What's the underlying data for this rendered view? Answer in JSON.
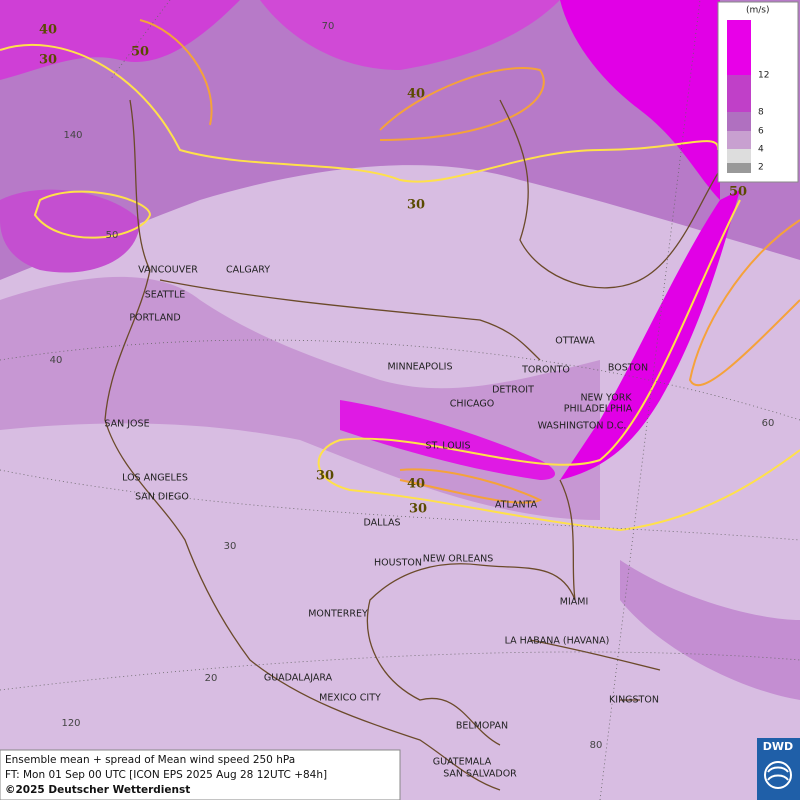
{
  "legend": {
    "unit": "(m/s)",
    "labels": [
      "12",
      "8",
      "6",
      "4",
      "2"
    ]
  },
  "cities": [
    "VANCOUVER",
    "CALGARY",
    "SEATTLE",
    "PORTLAND",
    "MINNEAPOLIS",
    "OTTAWA",
    "TORONTO",
    "DETROIT",
    "BOSTON",
    "NEW YORK",
    "PHILADELPHIA",
    "CHICAGO",
    "WASHINGTON D.C.",
    "SAN JOSE",
    "ST. LOUIS",
    "LOS ANGELES",
    "SAN DIEGO",
    "ATLANTA",
    "DALLAS",
    "HOUSTON",
    "NEW ORLEANS",
    "MIAMI",
    "MONTERREY",
    "LA HABANA (HAVANA)",
    "GUADALAJARA",
    "MEXICO CITY",
    "KINGSTON",
    "BELMOPAN",
    "GUATEMALA",
    "SAN SALVADOR"
  ],
  "contour_labels": [
    "40",
    "50",
    "30",
    "40",
    "30",
    "50",
    "30",
    "40",
    "30"
  ],
  "grid_labels": [
    "70",
    "140",
    "50",
    "40",
    "60",
    "30",
    "20",
    "120",
    "80"
  ],
  "footer": {
    "line1": "Ensemble mean + spread of Mean wind speed 250 hPa",
    "line2": "FT: Mon 01 Sep 00 UTC [ICON EPS 2025 Aug 28 12UTC +84h]",
    "line3": "©2025 Deutscher Wetterdienst"
  },
  "logo": "DWD"
}
